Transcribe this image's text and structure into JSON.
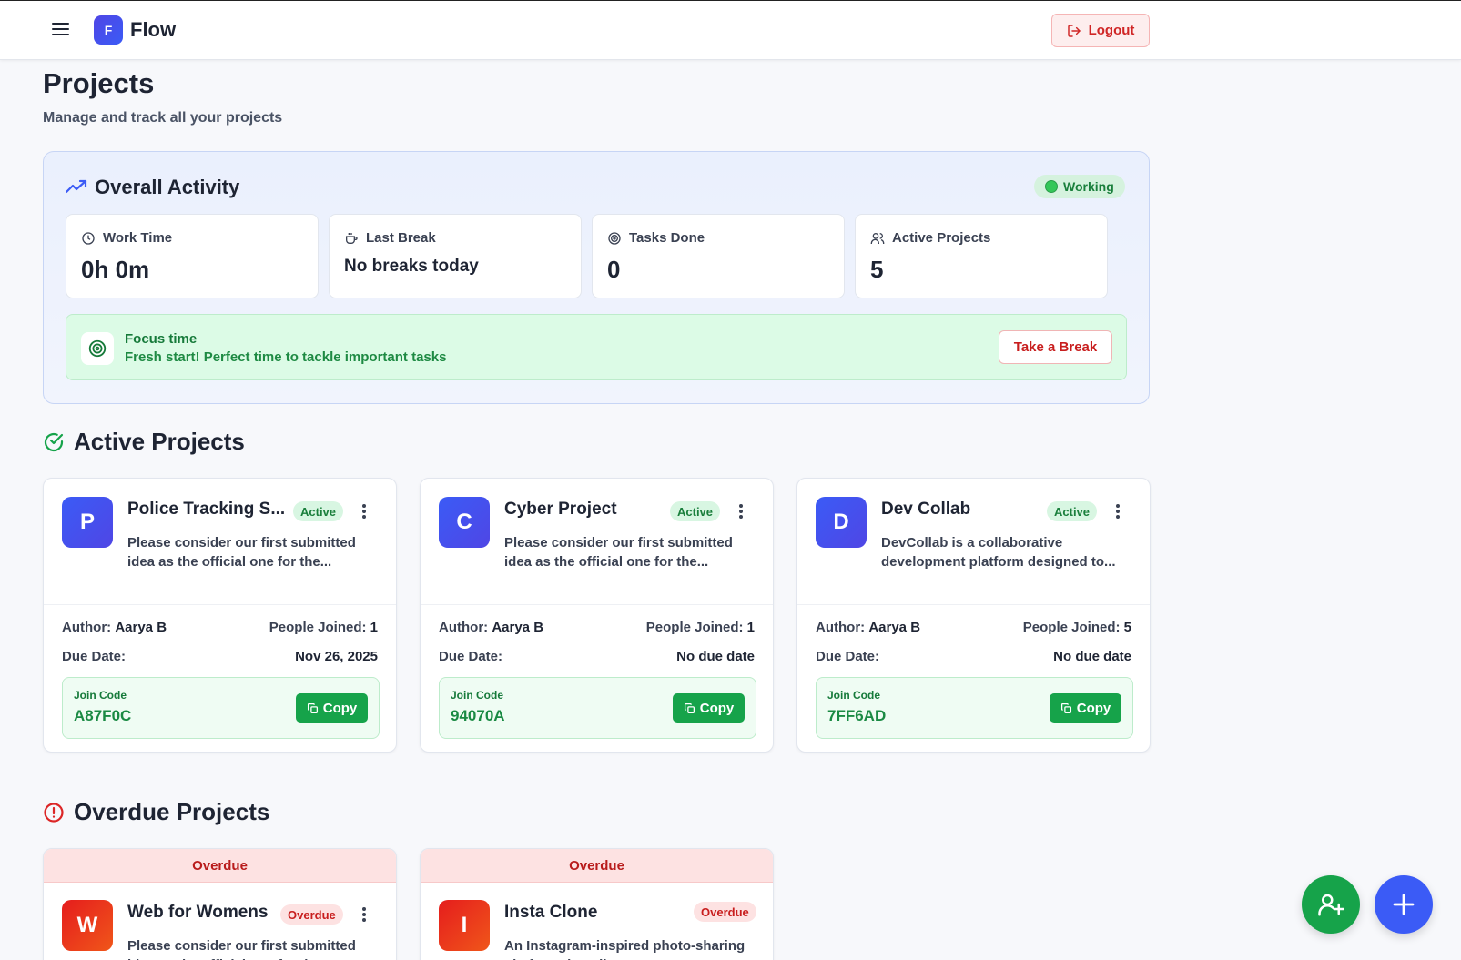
{
  "header": {
    "app_name": "Flow",
    "logo_letter": "F",
    "logout_label": "Logout"
  },
  "page": {
    "title": "Projects",
    "subtitle": "Manage and track all your projects"
  },
  "overall": {
    "title": "Overall Activity",
    "status": "Working",
    "stats": [
      {
        "label": "Work Time",
        "value": "0h 0m",
        "icon": "clock-icon"
      },
      {
        "label": "Last Break",
        "value": "No breaks today",
        "icon": "coffee-icon"
      },
      {
        "label": "Tasks Done",
        "value": "0",
        "icon": "target-icon"
      },
      {
        "label": "Active Projects",
        "value": "5",
        "icon": "users-icon"
      }
    ],
    "focus": {
      "title": "Focus time",
      "message": "Fresh start! Perfect time to tackle important tasks",
      "button": "Take a Break"
    }
  },
  "active_section": {
    "title": "Active Projects"
  },
  "active_projects": [
    {
      "letter": "P",
      "name": "Police Tracking S...",
      "badge": "Active",
      "description": "Please consider our first submitted idea as the official one for the...",
      "author_label": "Author:",
      "author": "Aarya B",
      "people_label": "People Joined:",
      "people": "1",
      "due_label": "Due Date:",
      "due": "Nov 26, 2025",
      "join_label": "Join Code",
      "join_code": "A87F0C",
      "copy_label": "Copy"
    },
    {
      "letter": "C",
      "name": "Cyber Project",
      "badge": "Active",
      "description": "Please consider our first submitted idea as the official one for the...",
      "author_label": "Author:",
      "author": "Aarya B",
      "people_label": "People Joined:",
      "people": "1",
      "due_label": "Due Date:",
      "due": "No due date",
      "join_label": "Join Code",
      "join_code": "94070A",
      "copy_label": "Copy"
    },
    {
      "letter": "D",
      "name": "Dev Collab",
      "badge": "Active",
      "description": "DevCollab is a collaborative development platform designed to...",
      "author_label": "Author:",
      "author": "Aarya B",
      "people_label": "People Joined:",
      "people": "5",
      "due_label": "Due Date:",
      "due": "No due date",
      "join_label": "Join Code",
      "join_code": "7FF6AD",
      "copy_label": "Copy"
    }
  ],
  "overdue_section": {
    "title": "Overdue Projects"
  },
  "overdue_projects": [
    {
      "strip": "Overdue",
      "letter": "W",
      "name": "Web for Womens",
      "badge": "Overdue",
      "description": "Please consider our first submitted idea as the official one for the..."
    },
    {
      "strip": "Overdue",
      "letter": "I",
      "name": "Insta Clone",
      "badge": "Overdue",
      "description": "An Instagram-inspired photo-sharing platform that allows users to post..."
    }
  ],
  "colors": {
    "accent": "#3b5bf6",
    "success": "#16a34a",
    "danger": "#c81e1e"
  }
}
